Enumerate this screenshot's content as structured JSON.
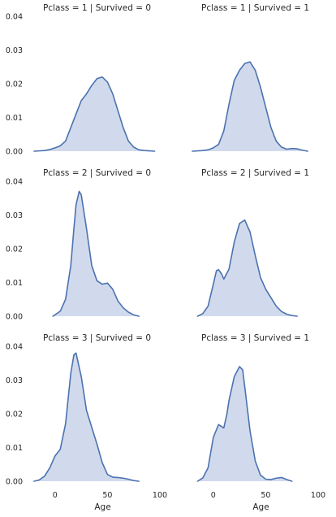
{
  "chart_data": {
    "type": "area",
    "xlabel": "Age",
    "ylabel": "",
    "xlim": [
      -20,
      100
    ],
    "ylim": [
      0,
      0.04
    ],
    "x_ticks": [
      0,
      50,
      100
    ],
    "y_ticks": [
      "0.00",
      "0.01",
      "0.02",
      "0.03",
      "0.04"
    ],
    "grid": false,
    "colors": {
      "line": "#4c72b0",
      "fill": "#ccd6ea"
    },
    "panels": [
      {
        "title": "Pclass = 1 | Survived = 0",
        "x": [
          -20,
          -10,
          -5,
          0,
          5,
          10,
          15,
          20,
          25,
          30,
          35,
          40,
          45,
          50,
          55,
          60,
          65,
          70,
          75,
          80,
          85,
          90,
          95
        ],
        "y": [
          0.0,
          0.0002,
          0.0005,
          0.001,
          0.0016,
          0.003,
          0.007,
          0.011,
          0.015,
          0.017,
          0.0195,
          0.0215,
          0.022,
          0.0205,
          0.017,
          0.012,
          0.007,
          0.003,
          0.0012,
          0.0004,
          0.0002,
          0.0001,
          0.0
        ]
      },
      {
        "title": "Pclass = 1 | Survived = 1",
        "x": [
          -20,
          -10,
          -5,
          0,
          5,
          10,
          15,
          20,
          25,
          30,
          35,
          40,
          45,
          50,
          55,
          60,
          65,
          70,
          75,
          80,
          85,
          90
        ],
        "y": [
          0.0,
          0.0002,
          0.0004,
          0.001,
          0.002,
          0.006,
          0.014,
          0.021,
          0.024,
          0.026,
          0.0265,
          0.024,
          0.019,
          0.013,
          0.007,
          0.003,
          0.0012,
          0.0006,
          0.0008,
          0.0007,
          0.0003,
          0.0
        ]
      },
      {
        "title": "Pclass = 2 | Survived = 0",
        "x": [
          -2,
          5,
          10,
          15,
          18,
          20,
          23,
          25,
          30,
          35,
          40,
          45,
          50,
          55,
          60,
          65,
          70,
          75,
          80
        ],
        "y": [
          0.0,
          0.0015,
          0.005,
          0.015,
          0.026,
          0.033,
          0.037,
          0.036,
          0.026,
          0.015,
          0.0105,
          0.0095,
          0.0098,
          0.008,
          0.0045,
          0.0025,
          0.0012,
          0.0004,
          0.0
        ]
      },
      {
        "title": "Pclass = 2 | Survived = 1",
        "x": [
          -15,
          -10,
          -5,
          0,
          3,
          5,
          8,
          10,
          15,
          20,
          25,
          30,
          35,
          40,
          45,
          50,
          55,
          60,
          65,
          70,
          75,
          80
        ],
        "y": [
          0.0,
          0.0008,
          0.003,
          0.0095,
          0.0135,
          0.0138,
          0.0125,
          0.011,
          0.014,
          0.022,
          0.0275,
          0.0285,
          0.025,
          0.018,
          0.0115,
          0.008,
          0.0055,
          0.003,
          0.0014,
          0.0006,
          0.0002,
          0.0
        ]
      },
      {
        "title": "Pclass = 3 | Survived = 0",
        "x": [
          -20,
          -15,
          -10,
          -5,
          0,
          5,
          10,
          15,
          18,
          20,
          25,
          30,
          35,
          40,
          45,
          50,
          55,
          60,
          65,
          70,
          75,
          80
        ],
        "y": [
          0.0,
          0.0004,
          0.0015,
          0.004,
          0.0075,
          0.0095,
          0.017,
          0.032,
          0.0375,
          0.038,
          0.031,
          0.021,
          0.016,
          0.011,
          0.0055,
          0.002,
          0.0012,
          0.0011,
          0.0009,
          0.0006,
          0.0002,
          0.0
        ]
      },
      {
        "title": "Pclass = 3 | Survived = 1",
        "x": [
          -15,
          -10,
          -5,
          0,
          5,
          8,
          10,
          13,
          15,
          20,
          25,
          28,
          30,
          35,
          40,
          45,
          50,
          55,
          60,
          65,
          70,
          75
        ],
        "y": [
          0.0,
          0.001,
          0.004,
          0.013,
          0.0168,
          0.0162,
          0.0158,
          0.02,
          0.024,
          0.031,
          0.034,
          0.033,
          0.028,
          0.015,
          0.006,
          0.0018,
          0.0006,
          0.0005,
          0.0009,
          0.0011,
          0.0005,
          0.0
        ]
      }
    ]
  }
}
